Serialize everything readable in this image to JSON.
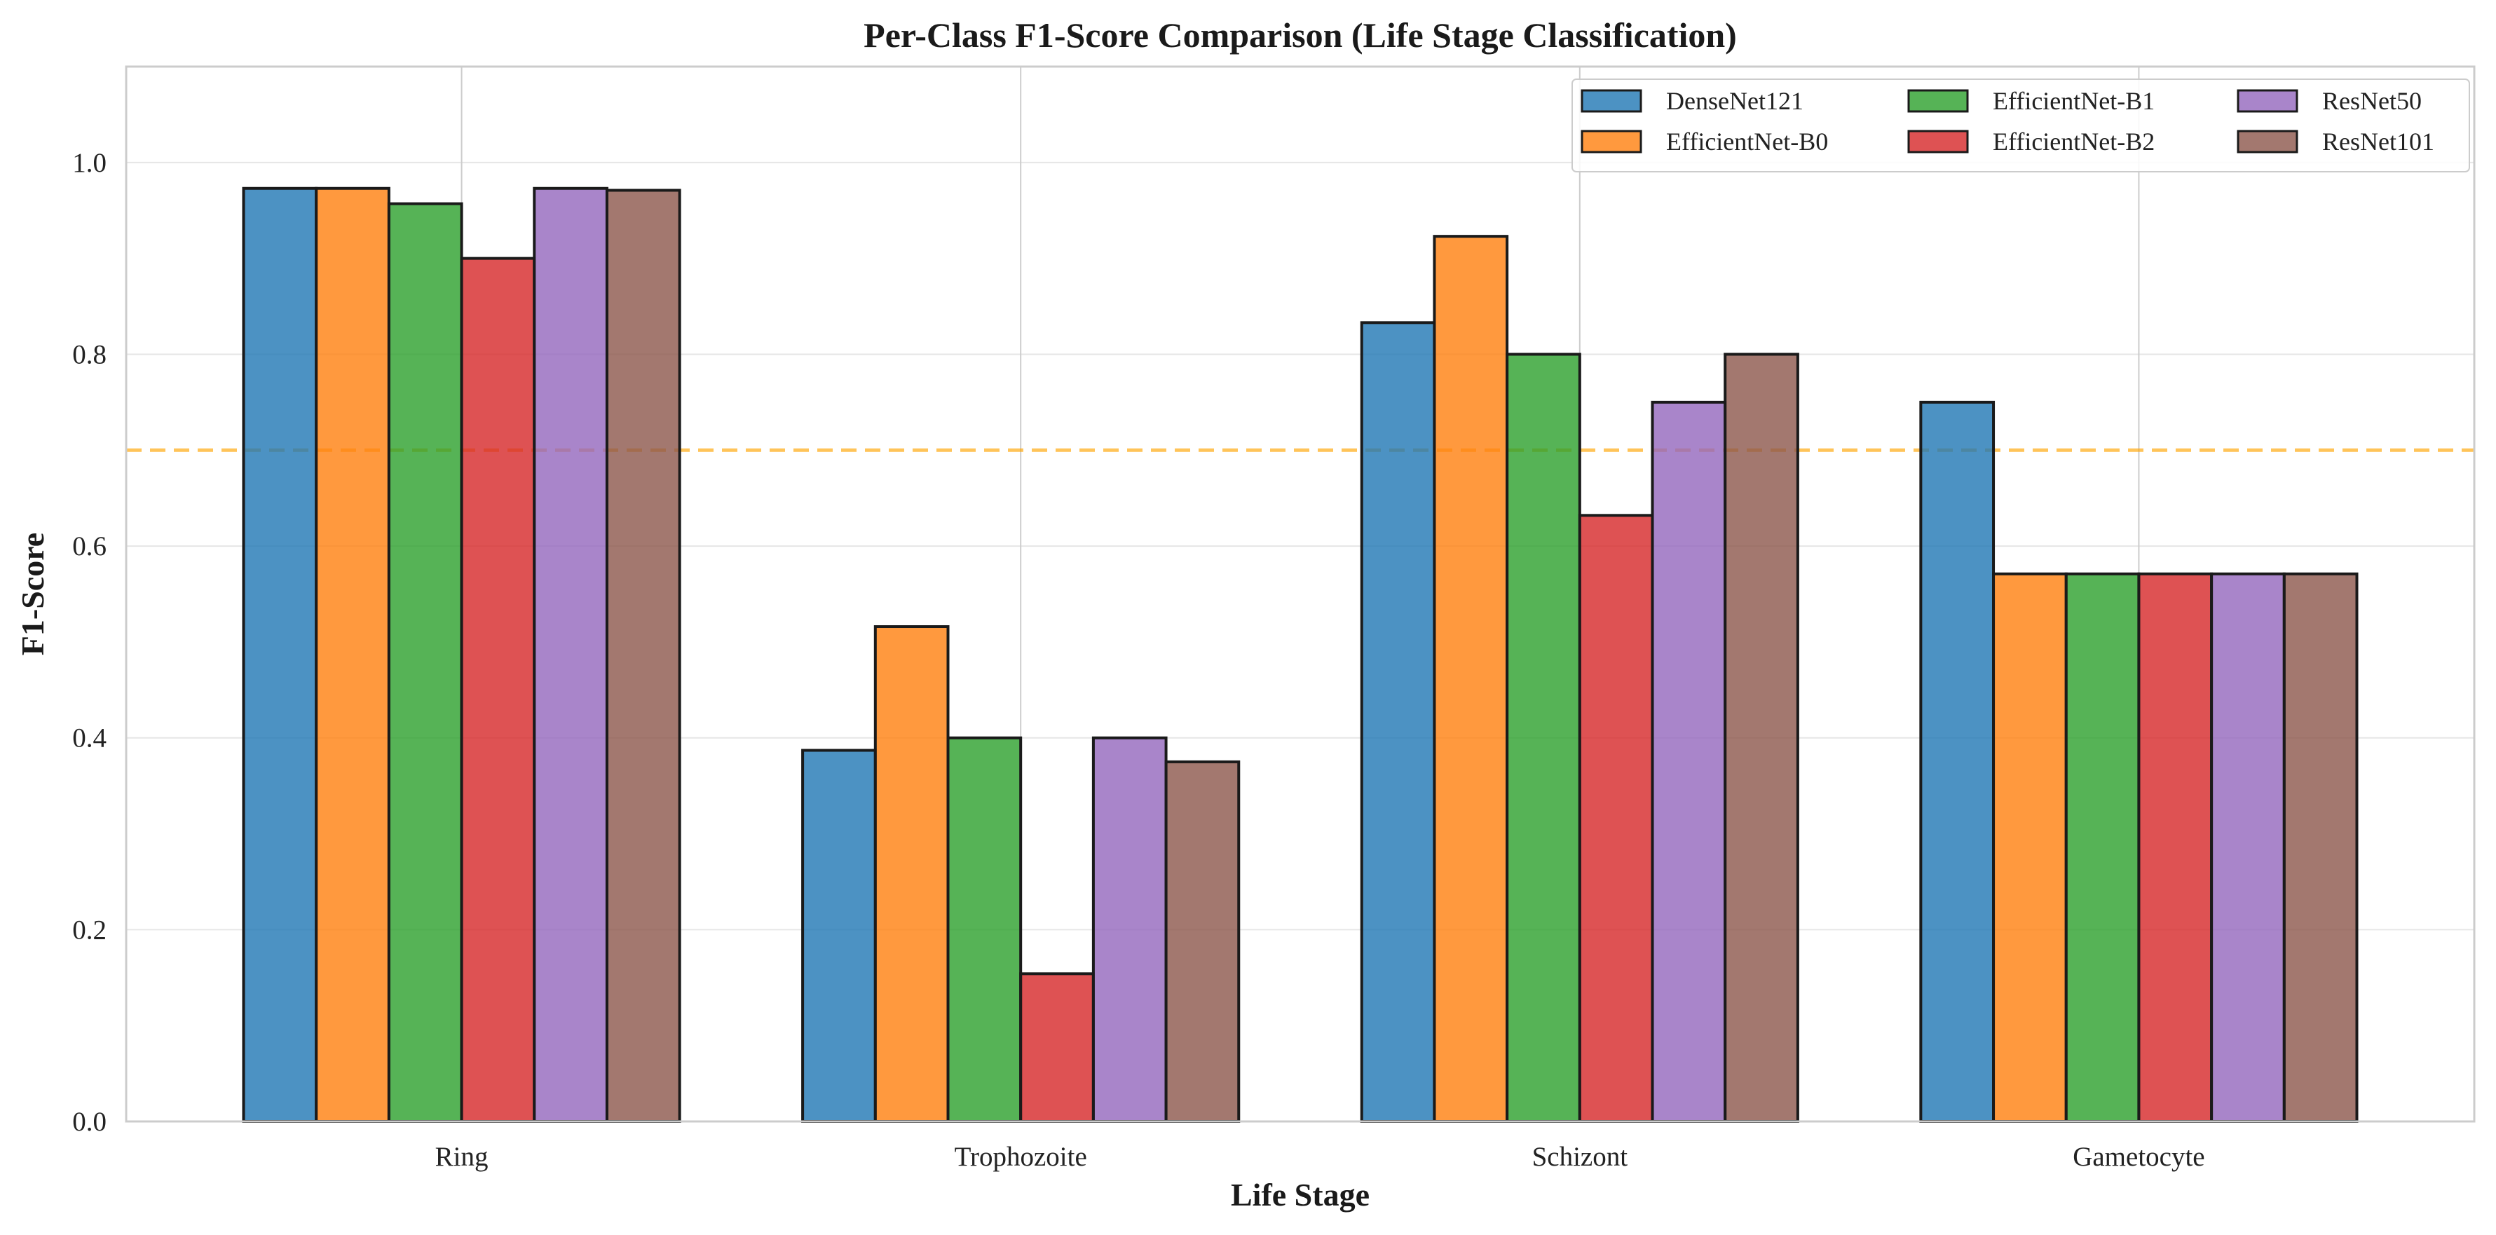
{
  "chart_data": {
    "type": "bar",
    "title": "Per-Class F1-Score Comparison (Life Stage Classification)",
    "xlabel": "Life Stage",
    "ylabel": "F1-Score",
    "categories": [
      "Ring",
      "Trophozoite",
      "Schizont",
      "Gametocyte"
    ],
    "ylim": [
      0,
      1.1
    ],
    "yticks": [
      0.0,
      0.2,
      0.4,
      0.6,
      0.8,
      1.0
    ],
    "ytick_labels": [
      "0.0",
      "0.2",
      "0.4",
      "0.6",
      "0.8",
      "1.0"
    ],
    "grid": true,
    "legend_position": "top-right",
    "reference_line": {
      "y": 0.7,
      "style": "dashed",
      "color": "#ffa500"
    },
    "series": [
      {
        "name": "DenseNet121",
        "color": "#1f77b4",
        "values": [
          0.973,
          0.387,
          0.833,
          0.75
        ]
      },
      {
        "name": "EfficientNet-B0",
        "color": "#ff7f0e",
        "values": [
          0.973,
          0.516,
          0.923,
          0.571
        ]
      },
      {
        "name": "EfficientNet-B1",
        "color": "#2ca02c",
        "values": [
          0.957,
          0.4,
          0.8,
          0.571
        ]
      },
      {
        "name": "EfficientNet-B2",
        "color": "#d62728",
        "values": [
          0.9,
          0.154,
          0.632,
          0.571
        ]
      },
      {
        "name": "ResNet50",
        "color": "#9467bd",
        "values": [
          0.973,
          0.4,
          0.75,
          0.571
        ]
      },
      {
        "name": "ResNet101",
        "color": "#8c564b",
        "values": [
          0.971,
          0.375,
          0.8,
          0.571
        ]
      }
    ]
  }
}
